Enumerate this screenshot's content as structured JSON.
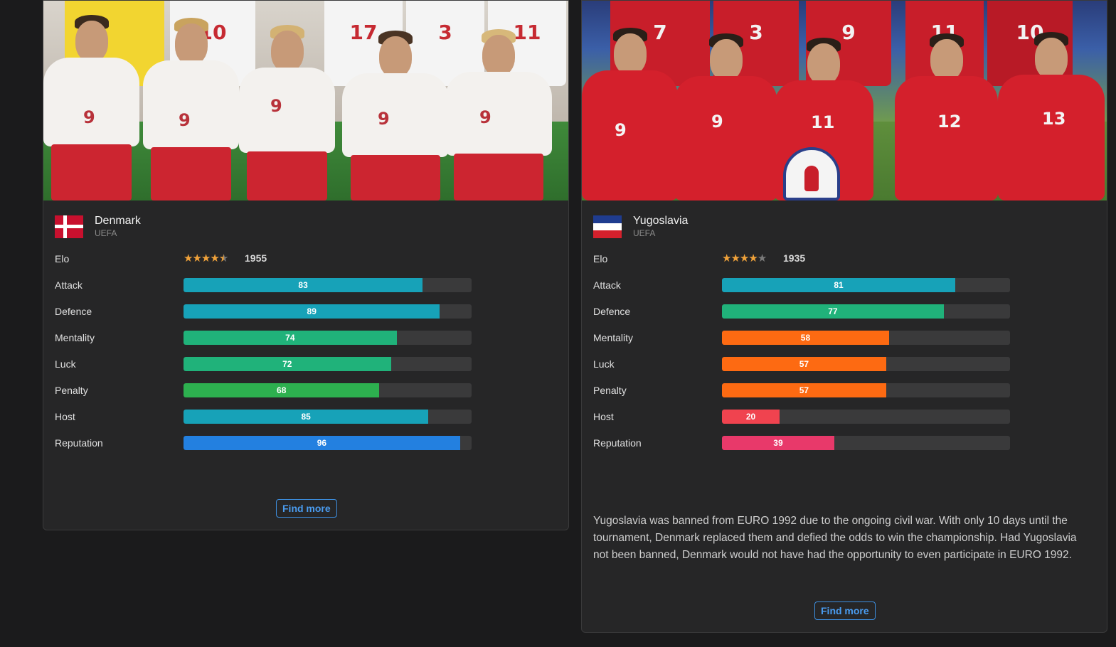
{
  "cards": [
    {
      "team": "Denmark",
      "confederation": "UEFA",
      "elo": {
        "label": "Elo",
        "value": "1955",
        "stars": 4.5
      },
      "stats": [
        {
          "label": "Attack",
          "value": 83,
          "color": "#17a2b8"
        },
        {
          "label": "Defence",
          "value": 89,
          "color": "#17a2b8"
        },
        {
          "label": "Mentality",
          "value": 74,
          "color": "#20b27a"
        },
        {
          "label": "Luck",
          "value": 72,
          "color": "#20b27a"
        },
        {
          "label": "Penalty",
          "value": 68,
          "color": "#2db04f"
        },
        {
          "label": "Host",
          "value": 85,
          "color": "#17a2b8"
        },
        {
          "label": "Reputation",
          "value": 96,
          "color": "#2380e0"
        }
      ],
      "description": "",
      "button_label": "Find more",
      "kit_numbers": [
        "9",
        "9",
        "9",
        "9",
        "9"
      ],
      "back_numbers": [
        "10",
        "17",
        "3",
        "11"
      ]
    },
    {
      "team": "Yugoslavia",
      "confederation": "UEFA",
      "elo": {
        "label": "Elo",
        "value": "1935",
        "stars": 4
      },
      "stats": [
        {
          "label": "Attack",
          "value": 81,
          "color": "#17a2b8"
        },
        {
          "label": "Defence",
          "value": 77,
          "color": "#20b27a"
        },
        {
          "label": "Mentality",
          "value": 58,
          "color": "#fd6a12"
        },
        {
          "label": "Luck",
          "value": 57,
          "color": "#fd6a12"
        },
        {
          "label": "Penalty",
          "value": 57,
          "color": "#fd6a12"
        },
        {
          "label": "Host",
          "value": 20,
          "color": "#f0434f"
        },
        {
          "label": "Reputation",
          "value": 39,
          "color": "#e8396a"
        }
      ],
      "description": "Yugoslavia was banned from EURO 1992 due to the ongoing civil war. With only 10 days until the tournament, Denmark replaced them and defied the odds to win the championship. Had Yugoslavia not been banned, Denmark would not have had the opportunity to even participate in EURO 1992.",
      "button_label": "Find more",
      "kit_numbers": [
        "9",
        "9",
        "11",
        "12",
        "13"
      ],
      "back_numbers": [
        "7",
        "3",
        "9",
        "11",
        "10"
      ]
    }
  ]
}
